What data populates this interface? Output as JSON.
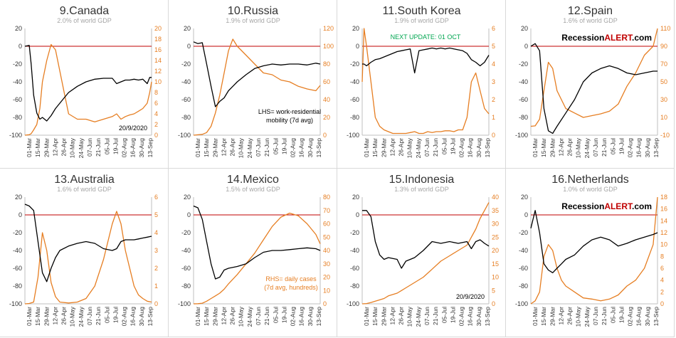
{
  "colors": {
    "lhs_line": "#000000",
    "rhs_line": "#e67e22",
    "zero_line": "#c00000",
    "green_note": "#00a650",
    "logo_accent": "#c00000"
  },
  "x_dates": [
    "01-Mar",
    "15-Mar",
    "29-Mar",
    "12-Apr",
    "26-Apr",
    "10-May",
    "24-May",
    "07-Jun",
    "21-Jun",
    "05-Jul",
    "19-Jul",
    "02-Aug",
    "16-Aug",
    "30-Aug",
    "13-Sep"
  ],
  "chart_data": [
    {
      "type": "line",
      "title": "9.Canada",
      "subtitle": "2.0% of world GDP",
      "ylim_left": [
        -100,
        20
      ],
      "yticks_left": [
        "20",
        "0",
        "-20",
        "-40",
        "-60",
        "-80",
        "-100"
      ],
      "ylim_right": [
        0,
        20
      ],
      "yticks_right": [
        "20",
        "18",
        "16",
        "14",
        "12",
        "10",
        "8",
        "6",
        "4",
        "2",
        "0"
      ],
      "xticks": [
        "01-Mar",
        "15-Mar",
        "29-Mar",
        "12-Apr",
        "26-Apr",
        "10-May",
        "24-May",
        "07-Jun",
        "21-Jun",
        "05-Jul",
        "19-Jul",
        "02-Aug",
        "16-Aug",
        "30-Aug",
        "13-Sep"
      ],
      "x": [
        0,
        7,
        10,
        14,
        19,
        24,
        28,
        35,
        42,
        49,
        56,
        63,
        70,
        84,
        98,
        112,
        126,
        140,
        147,
        154,
        161,
        168,
        175,
        182,
        189,
        196,
        200,
        203
      ],
      "series_left": [
        0,
        1,
        -20,
        -55,
        -75,
        -82,
        -80,
        -84,
        -78,
        -70,
        -64,
        -58,
        -52,
        -45,
        -40,
        -37,
        -36,
        -36,
        -42,
        -40,
        -38,
        -38,
        -37,
        -38,
        -37,
        -42,
        -35,
        -35
      ],
      "series_right": [
        0,
        0.1,
        0.3,
        1,
        2,
        5,
        10,
        14,
        17,
        16,
        12,
        8,
        4,
        3,
        3,
        2.5,
        3,
        3.5,
        4,
        3,
        3.5,
        3.8,
        4,
        4.5,
        5,
        6,
        8,
        10
      ],
      "annotations": [
        "20/9/2020"
      ],
      "logo": []
    },
    {
      "type": "line",
      "title": "10.Russia",
      "subtitle": "1.9% of world GDP",
      "ylim_left": [
        -100,
        20
      ],
      "yticks_left": [
        "20",
        "0",
        "-20",
        "-40",
        "-60",
        "-80",
        "-100"
      ],
      "ylim_right": [
        0,
        120
      ],
      "yticks_right": [
        "120",
        "100",
        "80",
        "60",
        "40",
        "20",
        "0"
      ],
      "xticks": [
        "01-Mar",
        "15-Mar",
        "29-Mar",
        "12-Apr",
        "26-Apr",
        "10-May",
        "24-May",
        "07-Jun",
        "21-Jun",
        "05-Jul",
        "19-Jul",
        "02-Aug",
        "16-Aug",
        "30-Aug",
        "13-Sep"
      ],
      "x": [
        0,
        7,
        14,
        21,
        28,
        35,
        42,
        49,
        56,
        63,
        70,
        84,
        98,
        112,
        126,
        140,
        154,
        168,
        182,
        196,
        203
      ],
      "series_left": [
        5,
        3,
        4,
        -20,
        -45,
        -68,
        -62,
        -58,
        -50,
        -45,
        -40,
        -32,
        -25,
        -22,
        -20,
        -21,
        -20,
        -20,
        -21,
        -19,
        -20
      ],
      "series_right": [
        0,
        0.5,
        1,
        3,
        10,
        25,
        45,
        70,
        95,
        108,
        100,
        90,
        80,
        70,
        68,
        62,
        60,
        55,
        52,
        50,
        56
      ],
      "annotations": [
        "LHS= work-residential",
        "mobility  (7d avg)"
      ],
      "logo": []
    },
    {
      "type": "line",
      "title": "11.South Korea",
      "subtitle": "1.9% of world GDP",
      "ylim_left": [
        -100,
        20
      ],
      "yticks_left": [
        "20",
        "0",
        "-20",
        "-40",
        "-60",
        "-80",
        "-100"
      ],
      "ylim_right": [
        0,
        6
      ],
      "yticks_right": [
        "6",
        "5",
        "4",
        "3",
        "2",
        "1",
        "0"
      ],
      "xticks": [
        "01-Mar",
        "15-Mar",
        "29-Mar",
        "12-Apr",
        "26-Apr",
        "10-May",
        "24-May",
        "07-Jun",
        "21-Jun",
        "05-Jul",
        "19-Jul",
        "02-Aug",
        "16-Aug",
        "30-Aug",
        "13-Sep"
      ],
      "x": [
        0,
        3,
        7,
        14,
        21,
        28,
        35,
        42,
        49,
        56,
        63,
        70,
        77,
        84,
        91,
        98,
        105,
        112,
        119,
        126,
        133,
        140,
        147,
        154,
        161,
        168,
        175,
        182,
        189,
        196,
        203
      ],
      "series_left": [
        -20,
        -20,
        -22,
        -18,
        -15,
        -14,
        -12,
        -10,
        -8,
        -6,
        -5,
        -4,
        -3,
        -30,
        -5,
        -4,
        -3,
        -2,
        -3,
        -2,
        -3,
        -2,
        -3,
        -4,
        -5,
        -8,
        -15,
        -18,
        -22,
        -18,
        -10
      ],
      "series_right": [
        3,
        6,
        5,
        3,
        1,
        0.5,
        0.3,
        0.2,
        0.1,
        0.1,
        0.1,
        0.1,
        0.15,
        0.2,
        0.1,
        0.1,
        0.2,
        0.15,
        0.2,
        0.2,
        0.25,
        0.25,
        0.2,
        0.3,
        0.3,
        1,
        3,
        3.5,
        2.5,
        1.5,
        1.2
      ],
      "annotations": [
        "NEXT UPDATE: 01 OCT"
      ],
      "logo": []
    },
    {
      "type": "line",
      "title": "12.Spain",
      "subtitle": "1.6% of world GDP",
      "ylim_left": [
        -100,
        20
      ],
      "yticks_left": [
        "20",
        "0",
        "-20",
        "-40",
        "-60",
        "-80",
        "-100"
      ],
      "ylim_right": [
        -10,
        110
      ],
      "yticks_right": [
        "110",
        "90",
        "70",
        "50",
        "30",
        "10",
        "-10"
      ],
      "xticks": [
        "01-Mar",
        "15-Mar",
        "29-Mar",
        "12-Apr",
        "26-Apr",
        "10-May",
        "24-May",
        "07-Jun",
        "21-Jun",
        "05-Jul",
        "19-Jul",
        "02-Aug",
        "16-Aug",
        "30-Aug",
        "13-Sep"
      ],
      "x": [
        0,
        7,
        14,
        21,
        28,
        35,
        42,
        56,
        70,
        84,
        98,
        112,
        126,
        140,
        154,
        168,
        182,
        196,
        203
      ],
      "series_left": [
        0,
        3,
        -5,
        -70,
        -95,
        -98,
        -90,
        -75,
        -60,
        -40,
        -30,
        -25,
        -22,
        -25,
        -30,
        -32,
        -30,
        -28,
        -28
      ],
      "series_right": [
        0,
        0.5,
        8,
        40,
        72,
        65,
        40,
        20,
        15,
        10,
        12,
        14,
        17,
        25,
        45,
        60,
        80,
        90,
        110
      ],
      "annotations": [],
      "logo": [
        "Recession",
        "ALERT",
        ".com"
      ]
    },
    {
      "type": "line",
      "title": "13.Australia",
      "subtitle": "1.6% of world GDP",
      "ylim_left": [
        -100,
        20
      ],
      "yticks_left": [
        "20",
        "0",
        "-20",
        "-40",
        "-60",
        "-80",
        "-100"
      ],
      "ylim_right": [
        0,
        6
      ],
      "yticks_right": [
        "6",
        "5",
        "4",
        "3",
        "2",
        "1",
        "0"
      ],
      "xticks": [
        "01-Mar",
        "15-Mar",
        "29-Mar",
        "12-Apr",
        "26-Apr",
        "10-May",
        "24-May",
        "07-Jun",
        "21-Jun",
        "05-Jul",
        "19-Jul",
        "02-Aug",
        "16-Aug",
        "30-Aug",
        "13-Sep"
      ],
      "x": [
        0,
        7,
        14,
        21,
        28,
        35,
        42,
        49,
        56,
        70,
        84,
        98,
        112,
        126,
        140,
        147,
        154,
        161,
        168,
        175,
        182,
        189,
        196,
        203
      ],
      "series_left": [
        12,
        10,
        5,
        -30,
        -65,
        -75,
        -60,
        -48,
        -40,
        -35,
        -32,
        -30,
        -32,
        -38,
        -40,
        -38,
        -30,
        -28,
        -28,
        -28,
        -27,
        -26,
        -25,
        -24
      ],
      "series_right": [
        0,
        0.02,
        0.1,
        1.5,
        4,
        3,
        1.2,
        0.4,
        0.1,
        0.05,
        0.1,
        0.3,
        1,
        2.5,
        4.5,
        5.2,
        4.5,
        3,
        2,
        1,
        0.5,
        0.3,
        0.15,
        0.1
      ],
      "annotations": [],
      "logo": []
    },
    {
      "type": "line",
      "title": "14.Mexico",
      "subtitle": "1.5% of world GDP",
      "ylim_left": [
        -100,
        20
      ],
      "yticks_left": [
        "20",
        "0",
        "-20",
        "-40",
        "-60",
        "-80",
        "-100"
      ],
      "ylim_right": [
        0,
        80
      ],
      "yticks_right": [
        "80",
        "70",
        "60",
        "50",
        "40",
        "30",
        "20",
        "10",
        "0"
      ],
      "xticks": [
        "01-Mar",
        "15-Mar",
        "29-Mar",
        "12-Apr",
        "26-Apr",
        "10-May",
        "24-May",
        "07-Jun",
        "21-Jun",
        "05-Jul",
        "19-Jul",
        "02-Aug",
        "16-Aug",
        "30-Aug",
        "13-Sep"
      ],
      "x": [
        0,
        7,
        14,
        21,
        28,
        35,
        42,
        49,
        56,
        70,
        84,
        98,
        112,
        126,
        140,
        154,
        168,
        182,
        196,
        203
      ],
      "series_left": [
        10,
        8,
        -5,
        -30,
        -55,
        -72,
        -70,
        -62,
        -60,
        -58,
        -55,
        -48,
        -42,
        -40,
        -40,
        -39,
        -38,
        -37,
        -38,
        -40
      ],
      "series_right": [
        0,
        0.1,
        0.5,
        2,
        4,
        6,
        8,
        11,
        15,
        22,
        30,
        38,
        48,
        58,
        65,
        68,
        66,
        60,
        52,
        45
      ],
      "annotations": [
        "RHS= daily cases",
        "(7d avg, hundreds)"
      ],
      "logo": []
    },
    {
      "type": "line",
      "title": "15.Indonesia",
      "subtitle": "1.3% of world GDP",
      "ylim_left": [
        -100,
        20
      ],
      "yticks_left": [
        "20",
        "0",
        "-20",
        "-40",
        "-60",
        "-80",
        "-100"
      ],
      "ylim_right": [
        0,
        40
      ],
      "yticks_right": [
        "40",
        "35",
        "30",
        "25",
        "20",
        "15",
        "10",
        "5",
        "0"
      ],
      "xticks": [
        "01-Mar",
        "15-Mar",
        "29-Mar",
        "12-Apr",
        "26-Apr",
        "10-May",
        "24-May",
        "07-Jun",
        "21-Jun",
        "05-Jul",
        "19-Jul",
        "02-Aug",
        "16-Aug",
        "30-Aug",
        "13-Sep"
      ],
      "x": [
        0,
        7,
        14,
        21,
        28,
        35,
        42,
        56,
        63,
        70,
        84,
        98,
        112,
        126,
        140,
        154,
        168,
        175,
        182,
        189,
        196,
        203
      ],
      "series_left": [
        5,
        5,
        -2,
        -30,
        -45,
        -50,
        -48,
        -50,
        -60,
        -52,
        -48,
        -40,
        -30,
        -32,
        -30,
        -32,
        -30,
        -38,
        -30,
        -28,
        -32,
        -35
      ],
      "series_right": [
        0,
        0.1,
        0.5,
        1,
        1.5,
        2,
        3,
        4,
        5,
        6,
        8,
        10,
        13,
        16,
        18,
        20,
        22,
        25,
        28,
        32,
        35,
        38
      ],
      "annotations": [
        "20/9/2020"
      ],
      "logo": []
    },
    {
      "type": "line",
      "title": "16.Netherlands",
      "subtitle": "1.0% of world GDP",
      "ylim_left": [
        -100,
        20
      ],
      "yticks_left": [
        "20",
        "0",
        "-20",
        "-40",
        "-60",
        "-80",
        "-100"
      ],
      "ylim_right": [
        0,
        18
      ],
      "yticks_right": [
        "18",
        "16",
        "14",
        "12",
        "10",
        "8",
        "6",
        "4",
        "2",
        "0"
      ],
      "xticks": [
        "01-Mar",
        "15-Mar",
        "29-Mar",
        "12-Apr",
        "26-Apr",
        "10-May",
        "24-May",
        "07-Jun",
        "21-Jun",
        "05-Jul",
        "19-Jul",
        "02-Aug",
        "16-Aug",
        "30-Aug",
        "13-Sep"
      ],
      "x": [
        0,
        7,
        14,
        21,
        28,
        35,
        42,
        49,
        56,
        70,
        84,
        98,
        112,
        126,
        140,
        154,
        168,
        182,
        196,
        203
      ],
      "series_left": [
        -15,
        5,
        -20,
        -55,
        -62,
        -65,
        -60,
        -55,
        -50,
        -45,
        -35,
        -28,
        -25,
        -28,
        -35,
        -32,
        -28,
        -25,
        -22,
        -20
      ],
      "series_right": [
        0,
        0.5,
        2,
        8,
        10,
        9,
        6,
        4,
        3,
        2,
        1,
        0.8,
        0.5,
        0.8,
        1.5,
        3,
        4,
        6,
        10,
        18
      ],
      "annotations": [],
      "logo": [
        "Recession",
        "ALERT",
        ".com"
      ]
    }
  ]
}
